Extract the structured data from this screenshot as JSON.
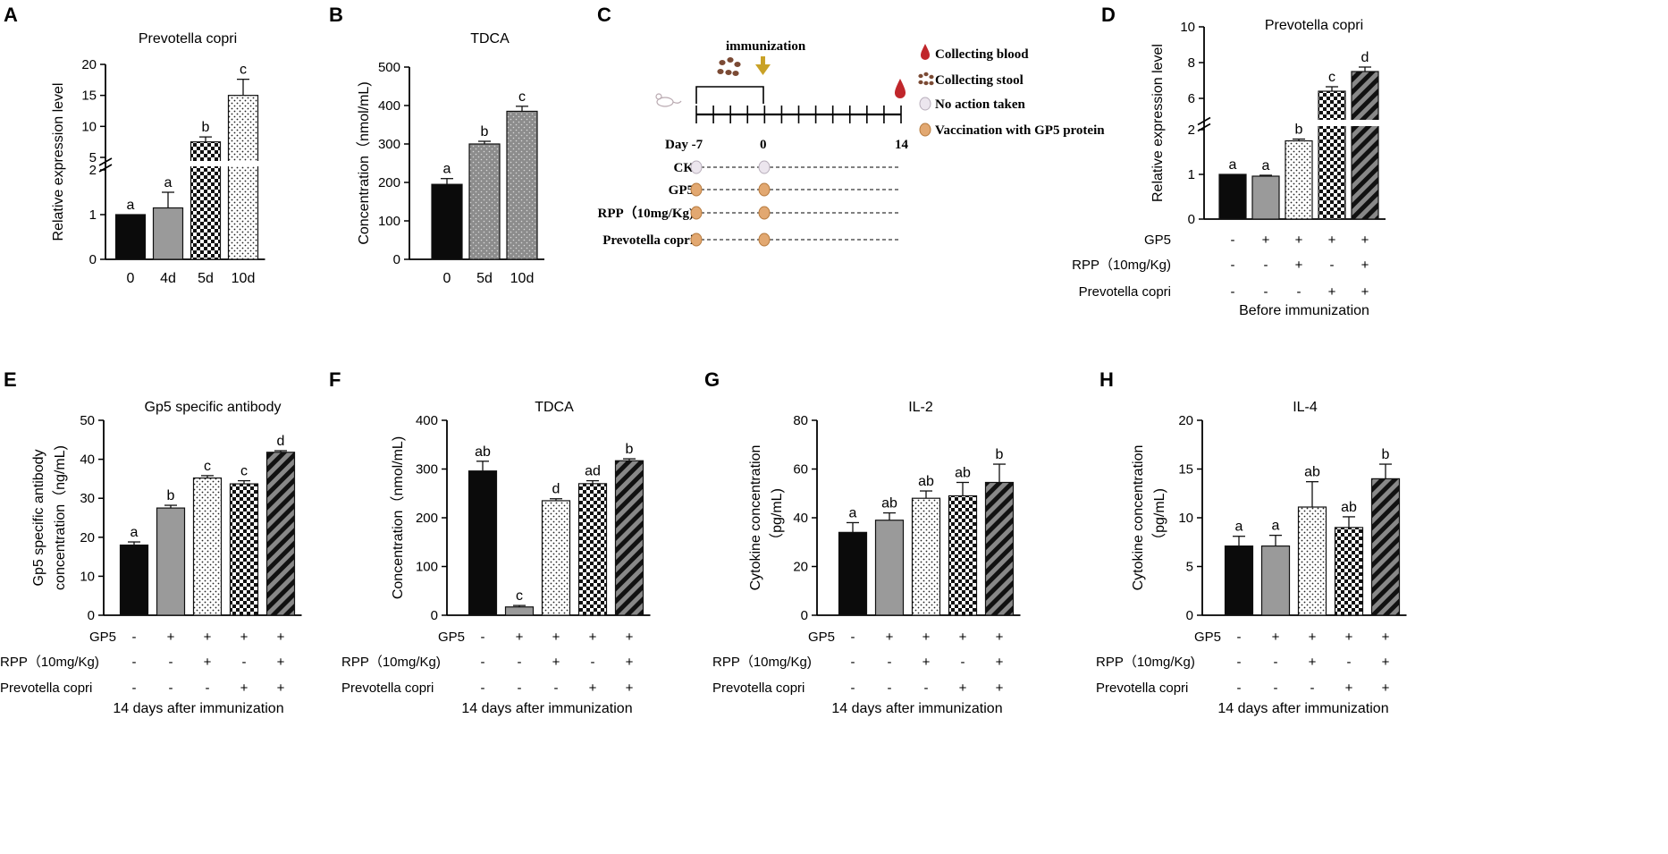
{
  "colors": {
    "black": "#0b0b0b",
    "gray": "#9a9a9a",
    "gray_dark": "#7f7f7f",
    "blood": "#c0262b",
    "stool": "#7b4a34",
    "arrow": "#c9a227",
    "circle_fill": "#e2a871",
    "circle_edge": "#b67a3e",
    "circle_empty": "#ece6ee"
  },
  "chart_data": [
    {
      "panel": "A",
      "type": "bar",
      "title": "Prevotella copri",
      "ylabel": "Relative expression level",
      "xlabel": "",
      "categories": [
        "0",
        "4d",
        "5d",
        "10d"
      ],
      "values": [
        1.0,
        1.15,
        7.5,
        15.0
      ],
      "errors": [
        0,
        0.35,
        0.8,
        2.6
      ],
      "letters": [
        "a",
        "a",
        "b",
        "c"
      ],
      "patterns": [
        "black",
        "gray",
        "checker",
        "dots"
      ],
      "axis_break": {
        "lower": [
          0,
          2
        ],
        "upper": [
          5,
          20
        ]
      },
      "yticks_lower": [
        "0",
        "1",
        "2"
      ],
      "yticks_upper": [
        "5",
        "10",
        "15",
        "20"
      ]
    },
    {
      "panel": "B",
      "type": "bar",
      "title": "TDCA",
      "ylabel": "Concentration（nmol/mL)",
      "xlabel": "",
      "categories": [
        "0",
        "5d",
        "10d"
      ],
      "values": [
        195,
        300,
        385
      ],
      "errors": [
        15,
        7,
        13
      ],
      "letters": [
        "a",
        "b",
        "c"
      ],
      "patterns": [
        "black",
        "graydots",
        "graydots"
      ],
      "ylim": [
        0,
        500
      ],
      "yticks": [
        "0",
        "100",
        "200",
        "300",
        "400",
        "500"
      ]
    },
    {
      "panel": "D",
      "type": "bar",
      "title": "Prevotella copri",
      "ylabel": "Relative expression level",
      "xlabel": "Before immunization",
      "categories": [
        "CK",
        "GP5",
        "GP5+RPP",
        "GP5+Prevotella copri",
        "GP5+RPP+Prevotella copri"
      ],
      "values": [
        1.0,
        0.96,
        1.75,
        6.4,
        7.5
      ],
      "errors": [
        0,
        0.02,
        0.04,
        0.25,
        0.25
      ],
      "letters": [
        "a",
        "a",
        "b",
        "c",
        "d"
      ],
      "patterns": [
        "black",
        "gray",
        "dots",
        "checker",
        "stripes"
      ],
      "axis_break": {
        "lower": [
          0,
          2
        ],
        "upper": [
          5,
          10
        ]
      },
      "yticks_lower": [
        "0",
        "1",
        "2"
      ],
      "yticks_upper": [
        "6",
        "8",
        "10"
      ],
      "factors": [
        {
          "label": "GP5",
          "signs": [
            "-",
            "+",
            "+",
            "+",
            "+"
          ]
        },
        {
          "label": "RPP（10mg/Kg)",
          "signs": [
            "-",
            "-",
            "+",
            "-",
            "+"
          ]
        },
        {
          "label": "Prevotella copri",
          "signs": [
            "-",
            "-",
            "-",
            "+",
            "+"
          ]
        }
      ]
    },
    {
      "panel": "E",
      "type": "bar",
      "title": "Gp5 specific antibody",
      "ylabel": "Gp5 specific antibody",
      "ylabel2": "concentration（ng/mL)",
      "xlabel": "14 days after immunization",
      "categories": [
        "CK",
        "GP5",
        "GP5+RPP",
        "GP5+Prevotella copri",
        "GP5+RPP+Prevotella copri"
      ],
      "values": [
        18.0,
        27.5,
        35.2,
        33.7,
        41.8
      ],
      "errors": [
        0.8,
        0.7,
        0.6,
        0.8,
        0.4
      ],
      "letters": [
        "a",
        "b",
        "c",
        "c",
        "d"
      ],
      "patterns": [
        "black",
        "gray",
        "dots",
        "checker",
        "stripes"
      ],
      "ylim": [
        0,
        50
      ],
      "yticks": [
        "0",
        "10",
        "20",
        "30",
        "40",
        "50"
      ],
      "factors": [
        {
          "label": "GP5",
          "signs": [
            "-",
            "+",
            "+",
            "+",
            "+"
          ]
        },
        {
          "label": "RPP（10mg/Kg)",
          "signs": [
            "-",
            "-",
            "+",
            "-",
            "+"
          ]
        },
        {
          "label": "Prevotella copri",
          "signs": [
            "-",
            "-",
            "-",
            "+",
            "+"
          ]
        }
      ]
    },
    {
      "panel": "F",
      "type": "bar",
      "title": "TDCA",
      "ylabel": "Concentration（nmol/mL)",
      "xlabel": "14 days after immunization",
      "categories": [
        "CK",
        "GP5",
        "GP5+RPP",
        "GP5+Prevotella copri",
        "GP5+RPP+Prevotella copri"
      ],
      "values": [
        296,
        17,
        235,
        270,
        317
      ],
      "errors": [
        20,
        3,
        4,
        6,
        4
      ],
      "letters": [
        "ab",
        "c",
        "d",
        "ad",
        "b"
      ],
      "patterns": [
        "black",
        "gray",
        "dots",
        "checker",
        "stripes"
      ],
      "ylim": [
        0,
        400
      ],
      "yticks": [
        "0",
        "100",
        "200",
        "300",
        "400"
      ],
      "factors": [
        {
          "label": "GP5",
          "signs": [
            "-",
            "+",
            "+",
            "+",
            "+"
          ]
        },
        {
          "label": "RPP（10mg/Kg)",
          "signs": [
            "-",
            "-",
            "+",
            "-",
            "+"
          ]
        },
        {
          "label": "Prevotella copri",
          "signs": [
            "-",
            "-",
            "-",
            "+",
            "+"
          ]
        }
      ]
    },
    {
      "panel": "G",
      "type": "bar",
      "title": "IL-2",
      "ylabel": "Cytokine concentration",
      "ylabel2": "（pg/mL)",
      "xlabel": "14 days after immunization",
      "categories": [
        "CK",
        "GP5",
        "GP5+RPP",
        "GP5+Prevotella copri",
        "GP5+RPP+Prevotella copri"
      ],
      "values": [
        34,
        39,
        48,
        49,
        54.5
      ],
      "errors": [
        4,
        3,
        3,
        5.5,
        7.5
      ],
      "letters": [
        "a",
        "ab",
        "ab",
        "ab",
        "b"
      ],
      "patterns": [
        "black",
        "gray",
        "dots",
        "checker",
        "stripes"
      ],
      "ylim": [
        0,
        80
      ],
      "yticks": [
        "0",
        "20",
        "40",
        "60",
        "80"
      ],
      "factors": [
        {
          "label": "GP5",
          "signs": [
            "-",
            "+",
            "+",
            "+",
            "+"
          ]
        },
        {
          "label": "RPP（10mg/Kg)",
          "signs": [
            "-",
            "-",
            "+",
            "-",
            "+"
          ]
        },
        {
          "label": "Prevotella copri",
          "signs": [
            "-",
            "-",
            "-",
            "+",
            "+"
          ]
        }
      ]
    },
    {
      "panel": "H",
      "type": "bar",
      "title": "IL-4",
      "ylabel": "Cytokine concentration",
      "ylabel2": "（pg/mL)",
      "xlabel": "14 days after immunization",
      "categories": [
        "CK",
        "GP5",
        "GP5+RPP",
        "GP5+Prevotella copri",
        "GP5+RPP+Prevotella copri"
      ],
      "values": [
        7.1,
        7.1,
        11.1,
        9.0,
        14.0
      ],
      "errors": [
        1.0,
        1.1,
        2.6,
        1.1,
        1.5
      ],
      "letters": [
        "a",
        "a",
        "ab",
        "ab",
        "b"
      ],
      "patterns": [
        "black",
        "gray",
        "dots",
        "checker",
        "stripes"
      ],
      "ylim": [
        0,
        20
      ],
      "yticks": [
        "0",
        "5",
        "10",
        "15",
        "20"
      ],
      "factors": [
        {
          "label": "GP5",
          "signs": [
            "-",
            "+",
            "+",
            "+",
            "+"
          ]
        },
        {
          "label": "RPP（10mg/Kg)",
          "signs": [
            "-",
            "-",
            "+",
            "-",
            "+"
          ]
        },
        {
          "label": "Prevotella copri",
          "signs": [
            "-",
            "-",
            "-",
            "+",
            "+"
          ]
        }
      ]
    }
  ],
  "schematic": {
    "panel": "C",
    "immunization_label": "immunization",
    "day_start": "Day -7",
    "day_zero": "0",
    "day_end": "14",
    "legend": [
      {
        "icon": "blood",
        "label": "Collecting blood"
      },
      {
        "icon": "stool",
        "label": "Collecting stool"
      },
      {
        "icon": "empty",
        "label": "No action taken"
      },
      {
        "icon": "filled",
        "label": "Vaccination with GP5 protein"
      }
    ],
    "groups": [
      {
        "label": "CK",
        "first": "empty",
        "second": "empty"
      },
      {
        "label": "GP5",
        "first": "filled",
        "second": "filled"
      },
      {
        "label": "RPP（10mg/Kg)",
        "first": "filled",
        "second": "filled"
      },
      {
        "label": "Prevotella copri",
        "first": "filled",
        "second": "filled"
      }
    ]
  }
}
